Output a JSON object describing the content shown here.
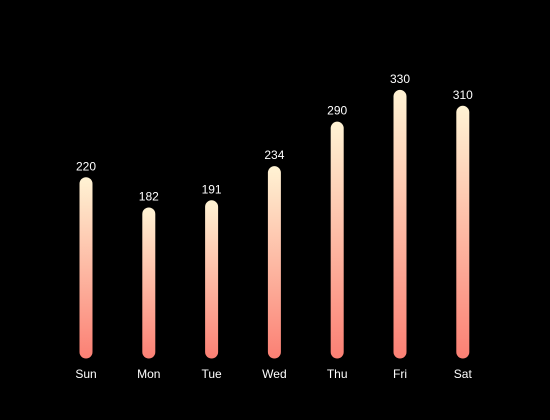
{
  "chart_data": {
    "type": "bar",
    "categories": [
      "Sun",
      "Mon",
      "Tue",
      "Wed",
      "Thu",
      "Fri",
      "Sat"
    ],
    "values": [
      220,
      182,
      191,
      234,
      290,
      330,
      310
    ],
    "value_labels": [
      "220",
      "182",
      "191",
      "234",
      "290",
      "330",
      "310"
    ],
    "title": "",
    "xlabel": "",
    "ylabel": "",
    "ylim": [
      0,
      345
    ],
    "grid": false,
    "legend": "none",
    "colors": {
      "background": "#000000",
      "bar_top": "#fff3d4",
      "bar_bottom": "#fb8074",
      "text": "#ffffff"
    }
  }
}
